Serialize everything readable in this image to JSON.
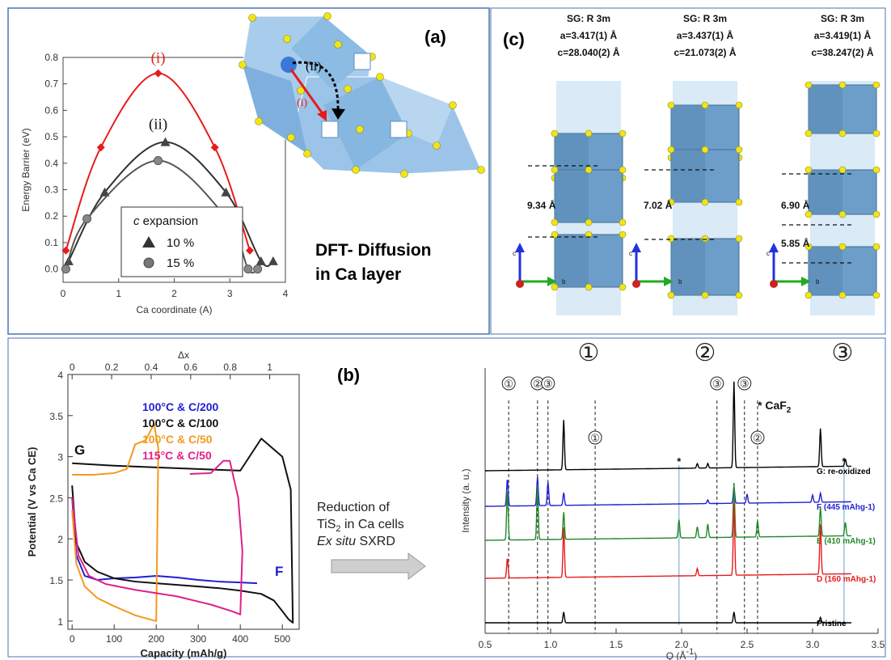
{
  "panel_labels": {
    "a": "(a)",
    "b": "(b)",
    "c": "(c)"
  },
  "panel_a": {
    "dft_line1": "DFT- Diffusion",
    "dft_line2": "in Ca layer",
    "inset_label_i": "(i)",
    "inset_label_ii": "(ii)",
    "legend_title_italic": "c",
    "legend_title_rest": " expansion"
  },
  "panel_b": {
    "curve_label_G": "G",
    "curve_label_F": "F",
    "legend": [
      {
        "text": "100°C & C/200",
        "color": "#1f1fd6"
      },
      {
        "text": "100°C & C/100",
        "color": "#111111"
      },
      {
        "text": "100°C & C/50",
        "color": "#f39a1e"
      },
      {
        "text": "115°C & C/50",
        "color": "#e0208a"
      }
    ],
    "arrow_text": [
      "Reduction of",
      "TiS2 in Ca cells",
      "Ex situ SXRD"
    ],
    "caf2_note": "* CaF",
    "caf2_sub": "2"
  },
  "panel_c": {
    "structures": [
      {
        "num": "①",
        "sg": "SG: R 3m",
        "a": "a=3.417(1) Å",
        "c": "c=28.040(2) Å",
        "dist": [
          "9.34 Å"
        ]
      },
      {
        "num": "②",
        "sg": "SG: R 3m",
        "a": "a=3.437(1) Å",
        "c": "c=21.073(2) Å",
        "dist": [
          "7.02 Å"
        ]
      },
      {
        "num": "③",
        "sg": "SG: R 3m",
        "a": "a=3.419(1) Å",
        "c": "c=38.247(2) Å",
        "dist": [
          "6.90 Å",
          "5.85 Å"
        ]
      }
    ],
    "axis_labels": {
      "c": "c",
      "b": "b"
    }
  },
  "chart_data": [
    {
      "type": "line",
      "panel": "a",
      "xlabel": "Ca coordinate (A)",
      "ylabel": "Energy Barrier (eV)",
      "xlim": [
        0,
        4
      ],
      "ylim": [
        -0.05,
        0.8
      ],
      "xticks": [
        "0",
        "1",
        "2",
        "3",
        "4"
      ],
      "yticks": [
        "0.0",
        "0.1",
        "0.2",
        "0.3",
        "0.4",
        "0.5",
        "0.6",
        "0.7",
        "0.8"
      ],
      "series": [
        {
          "name": "(i)",
          "color": "#e81b1b",
          "marker": "diamond",
          "x": [
            0.05,
            0.68,
            1.71,
            2.73,
            3.36
          ],
          "y": [
            0.07,
            0.46,
            0.74,
            0.46,
            0.07
          ]
        },
        {
          "name": "10 %",
          "color": "#333333",
          "marker": "triangle",
          "x": [
            0.1,
            0.75,
            1.84,
            2.93,
            3.56,
            3.78
          ],
          "y": [
            0.03,
            0.29,
            0.48,
            0.29,
            0.03,
            0.03
          ]
        },
        {
          "name": "15 %",
          "color": "#555555",
          "marker": "circle",
          "x": [
            0.05,
            0.43,
            1.71,
            2.95,
            3.33,
            3.5
          ],
          "y": [
            0.0,
            0.19,
            0.41,
            0.19,
            0.0,
            0.0
          ]
        }
      ],
      "curve_labels": [
        {
          "text": "(i)",
          "x": 1.71,
          "y": 0.78
        },
        {
          "text": "(ii)",
          "x": 1.71,
          "y": 0.53
        }
      ]
    },
    {
      "type": "line",
      "panel": "b-left",
      "xlabel": "Capacity (mAh/g)",
      "ylabel": "Potential (V vs Ca CE)",
      "x2label": "Δx",
      "xlim": [
        -10,
        540
      ],
      "ylim": [
        0.9,
        4
      ],
      "xticks": [
        "0",
        "100",
        "200",
        "300",
        "400",
        "500"
      ],
      "yticks": [
        "1",
        "1.5",
        "2",
        "2.5",
        "3",
        "3.5",
        "4"
      ],
      "x2ticks": [
        "0",
        "0.2",
        "0.4",
        "0.6",
        "0.8",
        "1"
      ],
      "series": [
        {
          "name": "100°C & C/200",
          "color": "#1f1fd6",
          "x": [
            0,
            10,
            30,
            60,
            100,
            150,
            200,
            250,
            300,
            350,
            400,
            440
          ],
          "y": [
            2.5,
            1.8,
            1.55,
            1.5,
            1.52,
            1.53,
            1.55,
            1.53,
            1.5,
            1.48,
            1.47,
            1.46
          ]
        },
        {
          "name": "100°C & C/100",
          "color": "#111111",
          "x": [
            0,
            10,
            30,
            60,
            100,
            150,
            200,
            250,
            300,
            350,
            400,
            450,
            480,
            500,
            515,
            525,
            520,
            500,
            450,
            400,
            300,
            200,
            100,
            0
          ],
          "y": [
            2.65,
            1.95,
            1.72,
            1.6,
            1.52,
            1.48,
            1.46,
            1.44,
            1.42,
            1.4,
            1.37,
            1.33,
            1.25,
            1.12,
            1.02,
            0.98,
            2.6,
            3.0,
            3.22,
            2.83,
            2.85,
            2.87,
            2.89,
            2.92
          ]
        },
        {
          "name": "100°C & C/50",
          "color": "#f39a1e",
          "x": [
            0,
            10,
            30,
            60,
            100,
            150,
            185,
            200,
            205,
            195,
            175,
            150,
            130,
            100,
            50,
            0
          ],
          "y": [
            2.35,
            1.7,
            1.42,
            1.28,
            1.18,
            1.07,
            1.02,
            1.0,
            3.1,
            3.4,
            3.2,
            3.15,
            2.85,
            2.8,
            2.78,
            2.78
          ]
        },
        {
          "name": "115°C & C/50",
          "color": "#e0208a",
          "x": [
            0,
            15,
            40,
            80,
            150,
            250,
            330,
            380,
            400,
            405,
            395,
            375,
            360,
            330,
            280
          ],
          "y": [
            2.5,
            1.8,
            1.55,
            1.45,
            1.38,
            1.3,
            1.2,
            1.12,
            1.08,
            1.85,
            2.5,
            2.95,
            2.95,
            2.8,
            2.79
          ]
        }
      ]
    },
    {
      "type": "line",
      "panel": "b-right",
      "xlabel": "Q (Å-1)",
      "ylabel": "Intensity (a. u.)",
      "xlim": [
        0.5,
        3.5
      ],
      "xticks": [
        "0.5",
        "1.0",
        "1.5",
        "2.0",
        "2.5",
        "3.0",
        "3.5"
      ],
      "series": [
        {
          "name": "G: re-oxidized",
          "color": "#000000",
          "offset": 4,
          "peaks": [
            [
              1.1,
              0.55
            ],
            [
              2.12,
              0.05
            ],
            [
              2.2,
              0.05
            ],
            [
              2.4,
              0.95
            ],
            [
              3.06,
              0.42
            ],
            [
              3.25,
              0.08
            ]
          ]
        },
        {
          "name": "F (445 mAhg-1)",
          "color": "#1f1fd6",
          "offset": 3,
          "peaks": [
            [
              0.67,
              0.3
            ],
            [
              0.9,
              0.32
            ],
            [
              0.98,
              0.26
            ],
            [
              1.1,
              0.14
            ],
            [
              2.2,
              0.04
            ],
            [
              2.4,
              0.18
            ],
            [
              2.5,
              0.1
            ],
            [
              3.0,
              0.08
            ],
            [
              3.06,
              0.1
            ]
          ]
        },
        {
          "name": "E (410 mAhg-1)",
          "color": "#22882a",
          "offset": 2,
          "peaks": [
            [
              0.67,
              0.56
            ],
            [
              0.9,
              0.6
            ],
            [
              1.1,
              0.3
            ],
            [
              1.98,
              0.2
            ],
            [
              2.12,
              0.12
            ],
            [
              2.2,
              0.15
            ],
            [
              2.4,
              0.6
            ],
            [
              2.58,
              0.18
            ],
            [
              3.06,
              0.32
            ],
            [
              3.25,
              0.15
            ]
          ]
        },
        {
          "name": "D (160 mAhg-1)",
          "color": "#e81b1b",
          "offset": 1,
          "peaks": [
            [
              0.67,
              0.22
            ],
            [
              1.1,
              0.55
            ],
            [
              2.12,
              0.08
            ],
            [
              2.4,
              0.8
            ],
            [
              3.06,
              0.55
            ]
          ]
        },
        {
          "name": "Pristine",
          "color": "#000000",
          "offset": 0,
          "peaks": [
            [
              1.1,
              0.12
            ],
            [
              2.4,
              0.12
            ],
            [
              3.06,
              0.06
            ]
          ]
        }
      ],
      "reference_lines": [
        {
          "label": "①",
          "q": 0.68
        },
        {
          "label": "②",
          "q": 0.9
        },
        {
          "label": "③",
          "q": 0.98
        },
        {
          "label": "①",
          "q": 1.34
        },
        {
          "label": "③",
          "q": 2.27
        },
        {
          "label": "③",
          "q": 2.48
        },
        {
          "label": "②",
          "q": 2.58
        }
      ],
      "caf2_lines": [
        1.98,
        3.24
      ]
    }
  ]
}
